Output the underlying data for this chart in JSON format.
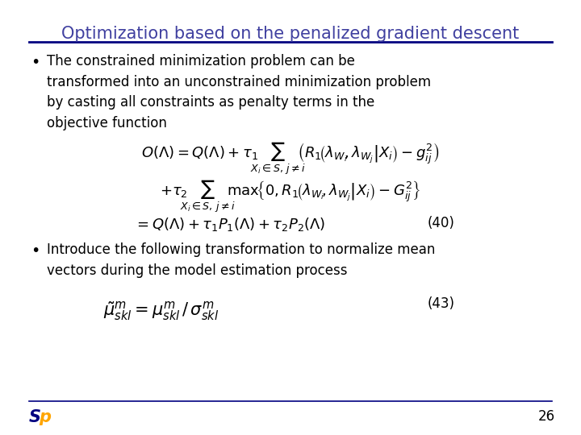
{
  "title": "Optimization based on the penalized gradient descent",
  "title_color": "#4040A0",
  "title_fontsize": 15,
  "background_color": "#FFFFFF",
  "separator_color": "#000080",
  "bullet1_text": "The constrained minimization problem can be\ntransformed into an unconstrained minimization problem\nby casting all constraints as penalty terms in the\nobjective function",
  "bullet2_text": "Introduce the following transformation to normalize mean\nvectors during the model estimation process",
  "eq3_label": "(40)",
  "eq4_label": "(43)",
  "page_number": "26",
  "logo_color_blue": "#000080",
  "logo_color_orange": "#FFA500",
  "text_color": "#000000",
  "math_color": "#000000",
  "body_fontsize": 12,
  "math_fontsize": 12
}
